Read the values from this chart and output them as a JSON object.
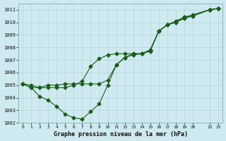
{
  "title": "Graphe pression niveau de la mer (hPa)",
  "bg_color": "#ceeaf0",
  "grid_color": "#b8d4d4",
  "line_color": "#1a5c1a",
  "xlim": [
    -0.5,
    23.5
  ],
  "ylim": [
    1002,
    1011.5
  ],
  "yticks": [
    1002,
    1003,
    1004,
    1005,
    1006,
    1007,
    1008,
    1009,
    1010,
    1011
  ],
  "xtick_positions": [
    0,
    1,
    2,
    3,
    4,
    5,
    6,
    7,
    8,
    9,
    10,
    11,
    12,
    13,
    14,
    15,
    16,
    17,
    18,
    19,
    20,
    22,
    23
  ],
  "xtick_labels": [
    "0",
    "1",
    "2",
    "3",
    "4",
    "5",
    "6",
    "7",
    "8",
    "9",
    "10",
    "11",
    "12",
    "13",
    "14",
    "15",
    "16",
    "17",
    "18",
    "19",
    "20",
    "22",
    "23"
  ],
  "line1_x": [
    0,
    1,
    2,
    3,
    4,
    5,
    6,
    7,
    8,
    9,
    10,
    11,
    12,
    13,
    14,
    15,
    16,
    17,
    18,
    19,
    20,
    22,
    23
  ],
  "line1_y": [
    1005.1,
    1004.8,
    1004.1,
    1003.8,
    1003.3,
    1002.7,
    1002.4,
    1002.3,
    1002.9,
    1003.5,
    1005.0,
    1006.6,
    1007.2,
    1007.4,
    1007.5,
    1007.7,
    1009.3,
    1009.8,
    1010.1,
    1010.4,
    1010.5,
    1011.0,
    1011.1
  ],
  "line2_x": [
    0,
    1,
    2,
    3,
    4,
    5,
    6,
    7,
    8,
    9,
    10,
    11,
    12,
    13,
    14,
    15,
    16,
    17,
    18,
    19,
    20,
    22,
    23
  ],
  "line2_y": [
    1005.1,
    1004.8,
    1004.8,
    1005.0,
    1005.0,
    1005.1,
    1005.1,
    1005.1,
    1005.1,
    1005.1,
    1005.4,
    1006.6,
    1007.2,
    1007.5,
    1007.5,
    1007.8,
    1009.3,
    1009.8,
    1010.0,
    1010.4,
    1010.6,
    1011.0,
    1011.1
  ],
  "line3_x": [
    0,
    1,
    2,
    3,
    4,
    5,
    6,
    7,
    8,
    9,
    10,
    11,
    12,
    13,
    14,
    15,
    16,
    17,
    18,
    19,
    20,
    22,
    23
  ],
  "line3_y": [
    1005.1,
    1005.0,
    1004.8,
    1004.8,
    1004.8,
    1004.8,
    1005.0,
    1005.3,
    1006.5,
    1007.1,
    1007.4,
    1007.5,
    1007.5,
    1007.5,
    1007.5,
    1007.8,
    1009.3,
    1009.8,
    1010.0,
    1010.3,
    1010.5,
    1011.0,
    1011.1
  ]
}
